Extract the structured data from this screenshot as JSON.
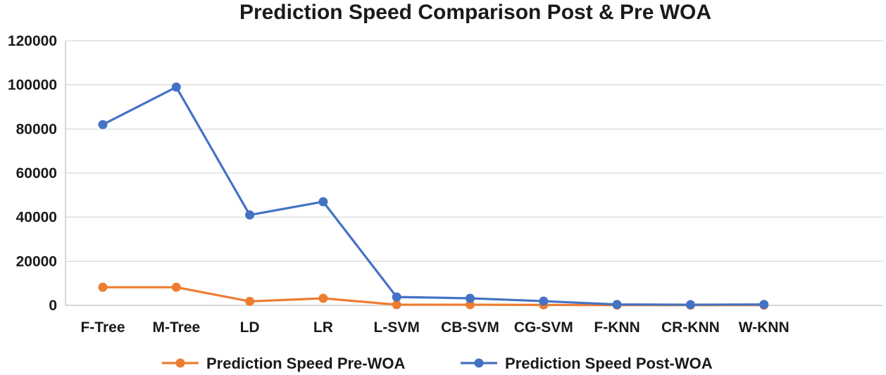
{
  "chart_data": {
    "type": "line",
    "title": "Prediction Speed Comparison Post & Pre WOA",
    "xlabel": "",
    "ylabel": "",
    "categories": [
      "F-Tree",
      "M-Tree",
      "LD",
      "LR",
      "L-SVM",
      "CB-SVM",
      "CG-SVM",
      "F-KNN",
      "CR-KNN",
      "W-KNN"
    ],
    "ylim": [
      0,
      120000
    ],
    "yticks": [
      0,
      20000,
      40000,
      60000,
      80000,
      100000,
      120000
    ],
    "grid": true,
    "legend_position": "bottom",
    "series": [
      {
        "name": "Prediction Speed Pre-WOA",
        "color": "#ed7d31",
        "values": [
          8200,
          8200,
          1800,
          3200,
          300,
          300,
          200,
          100,
          100,
          100
        ]
      },
      {
        "name": "Prediction Speed Post-WOA",
        "color": "#4472c4",
        "values": [
          82000,
          99000,
          41000,
          47000,
          3800,
          3200,
          1900,
          400,
          300,
          400
        ]
      }
    ]
  }
}
